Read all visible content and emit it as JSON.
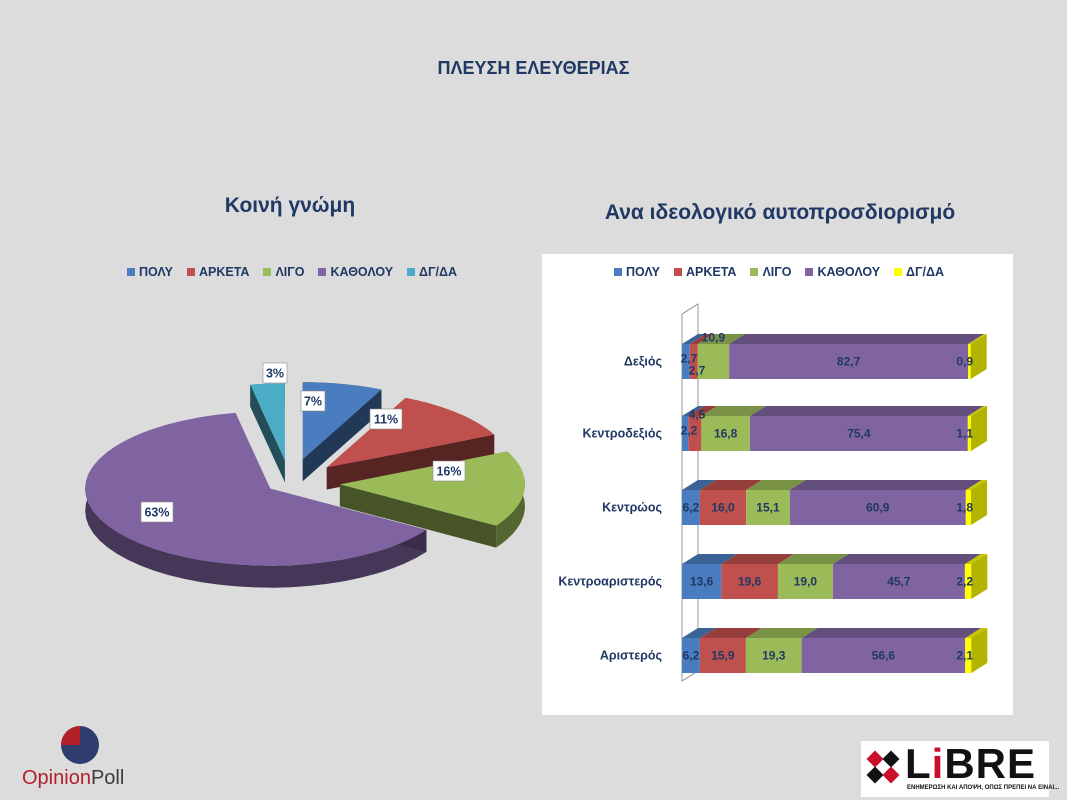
{
  "page": {
    "title": "ΠΛΕΥΣΗ ΕΛΕΥΘΕΡΙΑΣ",
    "left_subtitle": "Κοινή γνώμη",
    "right_subtitle": "Ανα ιδεολογικό αυτοπροσδιορισμό"
  },
  "logos": {
    "opinionpoll": {
      "part1": "Opinion",
      "part2": "Poll"
    },
    "libre": {
      "word_a": "L",
      "word_i": "i",
      "word_b": "BRE",
      "tagline": "ΕΝΗΜΕΡΩΣΗ ΚΑΙ ΑΠΟΨΗ, ΟΠΩΣ ΠΡΕΠΕΙ ΝΑ ΕΙΝΑΙ..."
    }
  },
  "chart_data": [
    {
      "type": "pie",
      "legend_position": "top",
      "categories": [
        "ΠΟΛΥ",
        "ΑΡΚΕΤΑ",
        "ΛΙΓΟ",
        "ΚΑΘΟΛΟΥ",
        "ΔΓ/ΔΑ"
      ],
      "values": [
        7,
        11,
        16,
        63,
        3
      ],
      "labels": [
        "7%",
        "11%",
        "16%",
        "63%",
        "3%"
      ],
      "colors": [
        "#4a7dbf",
        "#c0504d",
        "#9bbb59",
        "#8064a2",
        "#4bacc6"
      ]
    },
    {
      "type": "bar",
      "orientation": "horizontal",
      "stacked": true,
      "legend_position": "top",
      "categories": [
        "Δεξιός",
        "Κεντροδεξιός",
        "Κεντρώος",
        "Κεντροαριστερός",
        "Αριστερός"
      ],
      "series": [
        {
          "name": "ΠΟΛΥ",
          "color": "#4a7dbf",
          "values": [
            2.7,
            2.2,
            6.2,
            13.6,
            6.2
          ],
          "labels": [
            "2,7",
            "2,2",
            "6,2",
            "13,6",
            "6,2"
          ]
        },
        {
          "name": "ΑΡΚΕΤΑ",
          "color": "#c0504d",
          "values": [
            2.7,
            4.5,
            16.0,
            19.6,
            15.9
          ],
          "labels": [
            "2,7",
            "4,5",
            "16,0",
            "19,6",
            "15,9"
          ]
        },
        {
          "name": "ΛΙΓΟ",
          "color": "#9bbb59",
          "values": [
            10.9,
            16.8,
            15.1,
            19.0,
            19.3
          ],
          "labels": [
            "10,9",
            "16,8",
            "15,1",
            "19,0",
            "19,3"
          ]
        },
        {
          "name": "ΚΑΘΟΛΟΥ",
          "color": "#8064a2",
          "values": [
            82.7,
            75.4,
            60.9,
            45.7,
            56.6
          ],
          "labels": [
            "82,7",
            "75,4",
            "60,9",
            "45,7",
            "56,6"
          ]
        },
        {
          "name": "ΔΓ/ΔΑ",
          "color": "#ffff00",
          "values": [
            0.9,
            1.1,
            1.8,
            2.2,
            2.1
          ],
          "labels": [
            "0,9",
            "1,1",
            "1,8",
            "2,2",
            "2,1"
          ]
        }
      ],
      "xlim": [
        0,
        100
      ]
    }
  ]
}
